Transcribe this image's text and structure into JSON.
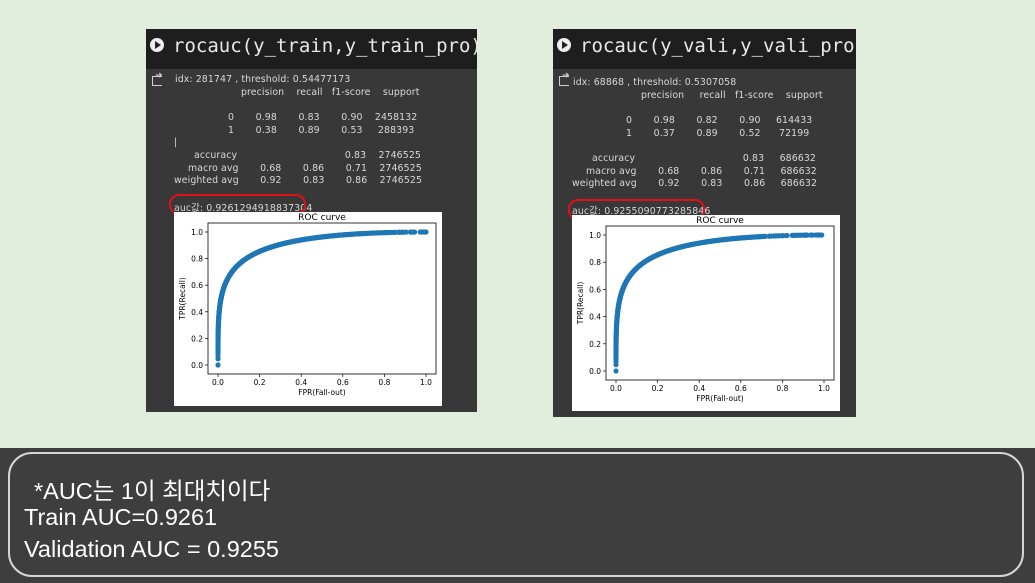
{
  "left_cell": {
    "code": "rocauc(y_train,y_train_pro)",
    "idx_line": "idx: 281747 , threshold: 0.54477173",
    "report_header": "precision    recall   f1-score    support",
    "row0": "0       0.98       0.83       0.90    2458132",
    "row1": "1       0.38       0.89       0.53     288393",
    "cursor": "|",
    "accuracy": "accuracy                                   0.83    2746525",
    "macro": "macro avg       0.68       0.86       0.71    2746525",
    "weighted": "weighted avg       0.92       0.83       0.86    2746525",
    "auc_line": "auc값: 0.9261294918837304",
    "plot_title": "ROC curve",
    "xlabel": "FPR(Fall-out)",
    "ylabel": "TPR(Recall)"
  },
  "right_cell": {
    "code": "rocauc(y_vali,y_vali_pro)",
    "idx_line": "idx: 68868 , threshold: 0.5307058",
    "report_header": "precision     recall   f1-score    support",
    "row0": "0       0.98       0.82       0.90     614433",
    "row1": "1       0.37       0.89       0.52      72199",
    "accuracy": "accuracy                                   0.83     686632",
    "macro": "macro avg       0.68       0.86       0.71     686632",
    "weighted": "weighted avg       0.92       0.83       0.86     686632",
    "auc_line": "auc값: 0.9255090773285846",
    "plot_title": "ROC curve",
    "xlabel": "FPR(Fall-out)",
    "ylabel": "TPR(Recall)"
  },
  "ticks": [
    "0.0",
    "0.2",
    "0.4",
    "0.6",
    "0.8",
    "1.0"
  ],
  "notes": {
    "line1": "*AUC는 1이 최대치이다",
    "line2": "Train AUC=0.9261",
    "line3": "Validation AUC = 0.9255"
  },
  "colors": {
    "scatter": "#1f77b4",
    "highlight": "#e0101a"
  }
}
